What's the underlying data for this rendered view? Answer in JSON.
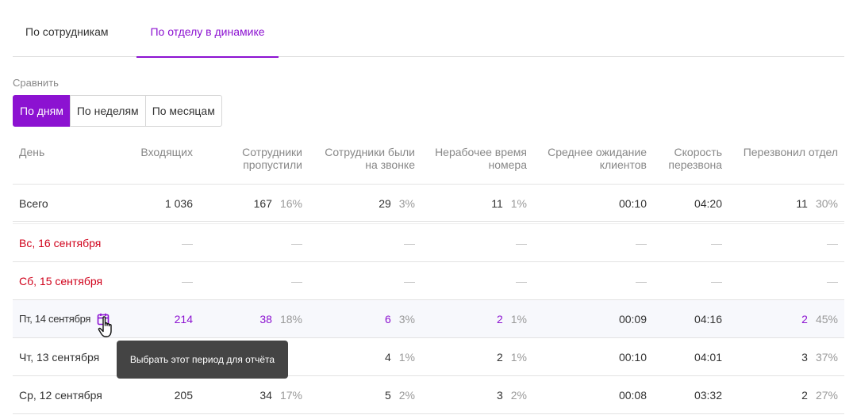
{
  "tabs": [
    {
      "label": "По сотрудникам",
      "active": false
    },
    {
      "label": "По отделу в динамике",
      "active": true
    }
  ],
  "compare": {
    "label": "Сравнить",
    "options": [
      "По дням",
      "По неделям",
      "По месяцам"
    ],
    "active_index": 0
  },
  "columns": {
    "day": "День",
    "incoming": "Входящих",
    "missed": [
      "Сотрудники",
      "пропустили"
    ],
    "on_call": [
      "Сотрудники были",
      "на звонке"
    ],
    "off_hours": [
      "Нерабочее время",
      "номера"
    ],
    "avg_wait": [
      "Среднее ожидание",
      "клиентов"
    ],
    "callback_speed": [
      "Скорость",
      "перезвона"
    ],
    "called_back": "Перезвонил отдел"
  },
  "total": {
    "day": "Всего",
    "incoming": "1 036",
    "missed": "167",
    "missed_pct": "16%",
    "on_call": "29",
    "on_call_pct": "3%",
    "off_hours": "11",
    "off_hours_pct": "1%",
    "avg_wait": "00:10",
    "callback_speed": "04:20",
    "called_back": "11",
    "called_back_pct": "30%"
  },
  "dash": "—",
  "rows": [
    {
      "day": "Вс, 16 сентября"
    },
    {
      "day": "Сб, 15 сентября"
    },
    {
      "day": "Пт, 14 сентября",
      "incoming": "214",
      "missed": "38",
      "missed_pct": "18%",
      "on_call": "6",
      "on_call_pct": "3%",
      "off_hours": "2",
      "off_hours_pct": "1%",
      "avg_wait": "00:09",
      "callback_speed": "04:16",
      "called_back": "2",
      "called_back_pct": "45%"
    },
    {
      "day": "Чт, 13 сентября",
      "on_call": "4",
      "on_call_pct": "1%",
      "off_hours": "2",
      "off_hours_pct": "1%",
      "avg_wait": "00:10",
      "callback_speed": "04:01",
      "called_back": "3",
      "called_back_pct": "37%"
    },
    {
      "day": "Ср, 12 сентября",
      "incoming": "205",
      "missed": "34",
      "missed_pct": "17%",
      "on_call": "5",
      "on_call_pct": "2%",
      "off_hours": "3",
      "off_hours_pct": "2%",
      "avg_wait": "00:08",
      "callback_speed": "03:32",
      "called_back": "2",
      "called_back_pct": "27%"
    }
  ],
  "tooltip": "Выбрать этот период для отчёта",
  "colors": {
    "accent": "#8c12d1",
    "weekend": "#d0021b",
    "tooltip_bg": "#444444"
  },
  "icons": {
    "select_period": "calendar-icon",
    "cursor": "hand-pointer-icon"
  }
}
